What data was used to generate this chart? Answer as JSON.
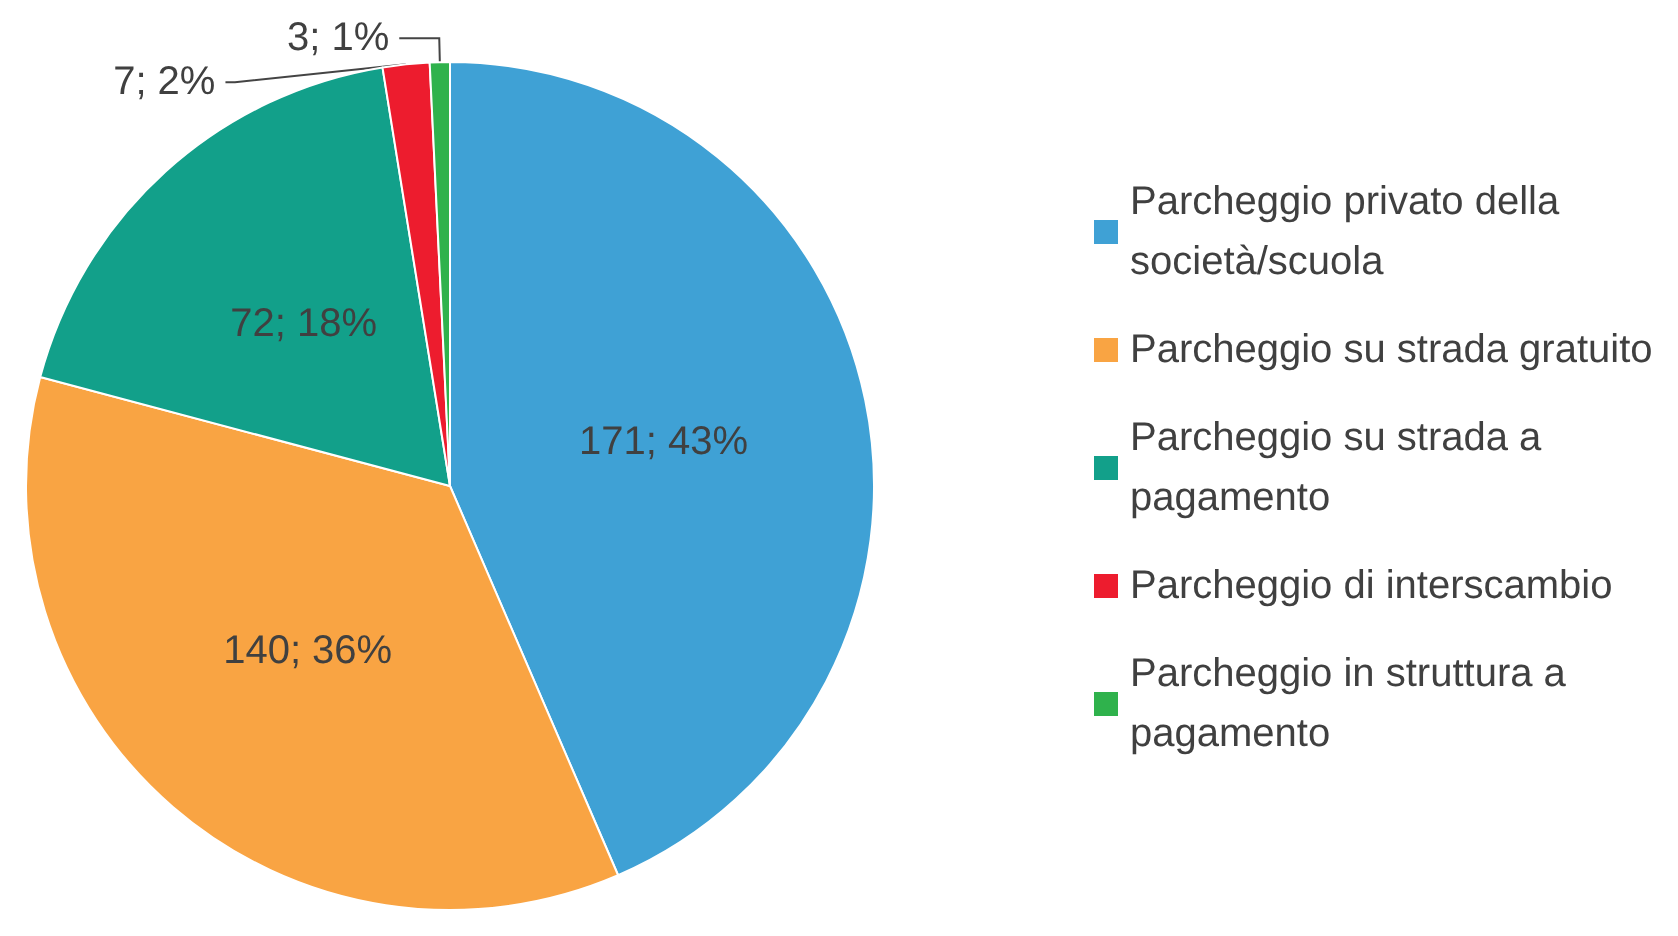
{
  "chart_data": {
    "type": "pie",
    "categories": [
      "Parcheggio privato della società/scuola",
      "Parcheggio su strada gratuito",
      "Parcheggio su strada a pagamento",
      "Parcheggio di interscambio",
      "Parcheggio in struttura a pagamento"
    ],
    "values": [
      171,
      140,
      72,
      7,
      3
    ],
    "value_labels": [
      "171; 43%",
      "140; 36%",
      "72; 18%",
      "7; 2%",
      "3; 1%"
    ],
    "colors": [
      "#3fa1d5",
      "#f9a443",
      "#12a08a",
      "#ed1c2e",
      "#2fb24c"
    ],
    "legend": "right"
  }
}
